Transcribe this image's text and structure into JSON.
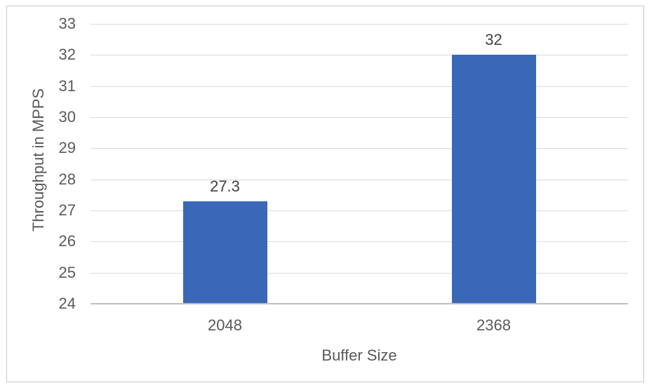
{
  "chart_data": {
    "type": "bar",
    "title": "",
    "categories": [
      "2048",
      "2368"
    ],
    "values": [
      27.3,
      32
    ],
    "value_labels": [
      "27.3",
      "32"
    ],
    "series_count": 1,
    "xlabel": "Buffer Size",
    "ylabel": "Throughput in MPPS",
    "ylim": [
      24,
      33
    ],
    "ytick_step": 1,
    "yticks": [
      24,
      25,
      26,
      27,
      28,
      29,
      30,
      31,
      32,
      33
    ],
    "grid": true,
    "legend_position": "none",
    "colors": {
      "bar": "#3A68B7",
      "gridline": "#D9D9D9",
      "axis_line": "#BFBFBF",
      "tick_text": "#595959",
      "axis_title_text": "#595959",
      "data_label_text": "#404040",
      "frame_border": "#C9C9C9",
      "background": "#FFFFFF"
    }
  }
}
